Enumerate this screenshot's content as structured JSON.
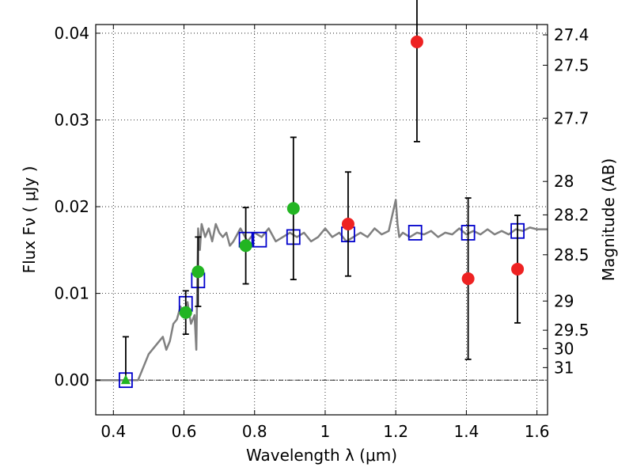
{
  "chart_data": {
    "type": "scatter",
    "xlabel": "Wavelength  λ (μm)",
    "ylabel": "Flux  Fν  ( μJy )",
    "ylabel_right": "Magnitude (AB)",
    "xlim": [
      0.35,
      1.63
    ],
    "ylim": [
      -0.004,
      0.041
    ],
    "grid": true,
    "x_ticks": [
      0.4,
      0.6,
      0.8,
      1.0,
      1.2,
      1.4,
      1.6
    ],
    "x_tick_labels": [
      "0.4",
      "0.6",
      "0.8",
      "1",
      "1.2",
      "1.4",
      "1.6"
    ],
    "y_ticks": [
      0.0,
      0.01,
      0.02,
      0.03,
      0.04
    ],
    "y_tick_labels": [
      "0.00",
      "0.01",
      "0.02",
      "0.03",
      "0.04"
    ],
    "right_ticks": [
      {
        "label": "27.4",
        "mag": 27.4
      },
      {
        "label": "27.5",
        "mag": 27.5
      },
      {
        "label": "27.7",
        "mag": 27.7
      },
      {
        "label": "28",
        "mag": 28.0
      },
      {
        "label": "28.2",
        "mag": 28.2
      },
      {
        "label": "28.5",
        "mag": 28.5
      },
      {
        "label": "29",
        "mag": 29.0
      },
      {
        "label": "29.5",
        "mag": 29.5
      },
      {
        "label": "30",
        "mag": 30.0
      },
      {
        "label": "31",
        "mag": 31.0
      }
    ],
    "zero_line": 0.0,
    "series": [
      {
        "style": "line",
        "color": "#808080",
        "x": [
          0.35,
          0.47,
          0.48,
          0.5,
          0.52,
          0.54,
          0.55,
          0.56,
          0.57,
          0.58,
          0.59,
          0.6,
          0.61,
          0.62,
          0.63,
          0.635,
          0.64,
          0.645,
          0.65,
          0.66,
          0.67,
          0.68,
          0.69,
          0.7,
          0.71,
          0.72,
          0.73,
          0.74,
          0.76,
          0.78,
          0.8,
          0.82,
          0.84,
          0.86,
          0.88,
          0.9,
          0.92,
          0.94,
          0.96,
          0.98,
          1.0,
          1.02,
          1.04,
          1.06,
          1.08,
          1.1,
          1.12,
          1.14,
          1.16,
          1.18,
          1.2,
          1.205,
          1.21,
          1.22,
          1.24,
          1.26,
          1.28,
          1.3,
          1.32,
          1.34,
          1.36,
          1.38,
          1.4,
          1.42,
          1.44,
          1.46,
          1.48,
          1.5,
          1.52,
          1.54,
          1.56,
          1.58,
          1.6,
          1.63
        ],
        "y": [
          0.0,
          0.0,
          0.001,
          0.003,
          0.004,
          0.005,
          0.0035,
          0.0045,
          0.0065,
          0.007,
          0.0085,
          0.0075,
          0.009,
          0.0065,
          0.0075,
          0.0035,
          0.0175,
          0.015,
          0.018,
          0.0165,
          0.0175,
          0.016,
          0.018,
          0.017,
          0.0165,
          0.017,
          0.0155,
          0.016,
          0.0175,
          0.016,
          0.017,
          0.0165,
          0.0175,
          0.016,
          0.0165,
          0.017,
          0.0165,
          0.017,
          0.016,
          0.0165,
          0.0175,
          0.0165,
          0.017,
          0.016,
          0.0165,
          0.017,
          0.0165,
          0.0175,
          0.0168,
          0.0172,
          0.0208,
          0.018,
          0.0165,
          0.017,
          0.0165,
          0.017,
          0.0168,
          0.0172,
          0.0165,
          0.017,
          0.0168,
          0.0175,
          0.0168,
          0.0172,
          0.0168,
          0.0174,
          0.0168,
          0.0172,
          0.0168,
          0.0174,
          0.0172,
          0.0176,
          0.0174,
          0.0174
        ]
      },
      {
        "style": "open-square",
        "color": "#0000cc",
        "x": [
          0.435,
          0.605,
          0.64,
          0.775,
          0.815,
          0.91,
          1.065,
          1.255,
          1.405,
          1.545
        ],
        "y": [
          0.0,
          0.0088,
          0.0115,
          0.0162,
          0.0162,
          0.0165,
          0.0168,
          0.017,
          0.017,
          0.0172
        ]
      },
      {
        "style": "circle",
        "color": "#22b522",
        "x": [
          0.605,
          0.64,
          0.775,
          0.91
        ],
        "y": [
          0.0078,
          0.0125,
          0.0155,
          0.0198
        ],
        "err": [
          0.0025,
          0.004,
          0.0044,
          0.0082
        ]
      },
      {
        "style": "triangle",
        "color": "#22b522",
        "x": [
          0.435
        ],
        "y": [
          0.0
        ],
        "err_top": [
          0.005
        ]
      },
      {
        "style": "circle",
        "color": "#ee2222",
        "x": [
          1.065,
          1.26,
          1.405,
          1.545
        ],
        "y": [
          0.018,
          0.039,
          0.0117,
          0.0128
        ],
        "err": [
          0.006,
          0.0115,
          0.0093,
          0.0062
        ]
      }
    ]
  }
}
